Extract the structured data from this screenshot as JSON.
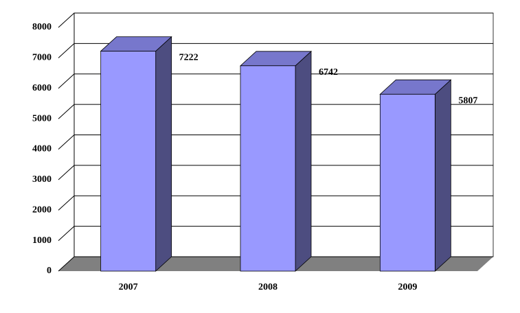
{
  "chart_data": {
    "type": "bar3d",
    "categories": [
      "2007",
      "2008",
      "2009"
    ],
    "values": [
      7222,
      6742,
      5807
    ],
    "color": "#9999ff",
    "ylim": [
      0,
      8000
    ],
    "yticks": [
      0,
      1000,
      2000,
      3000,
      4000,
      5000,
      6000,
      7000,
      8000
    ],
    "grid": true
  }
}
